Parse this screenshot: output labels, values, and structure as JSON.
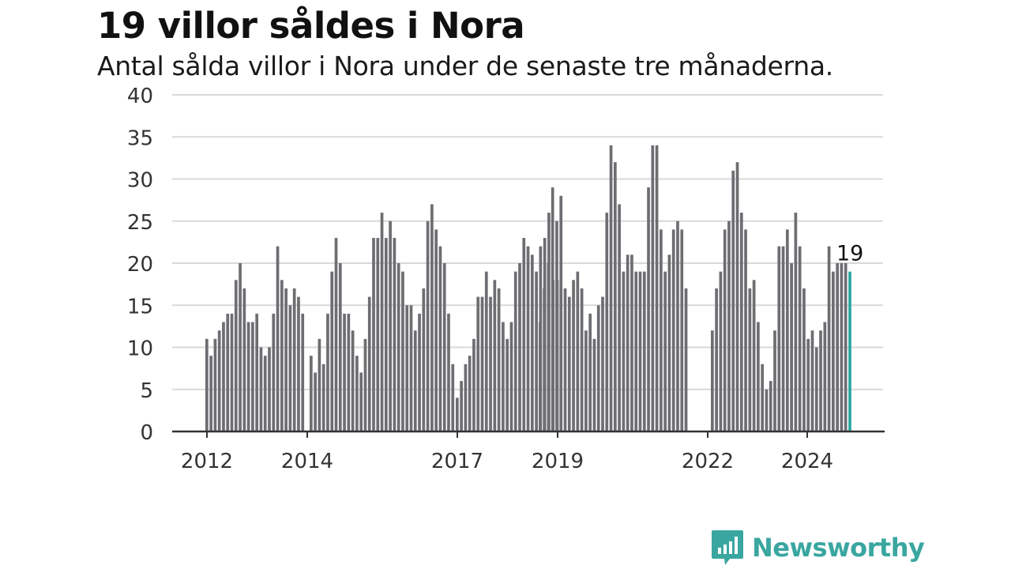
{
  "header": {
    "title": "19 villor såldes i Nora",
    "subtitle": "Antal sålda villor i Nora under de senaste tre månaderna."
  },
  "brand": {
    "name": "Newsworthy",
    "icon": "newsworthy-logo-icon",
    "color": "#3aa6a0"
  },
  "colors": {
    "bar": "#6d6d72",
    "highlight": "#2aa6a0",
    "grid": "#d9d9d9",
    "axis": "#333333"
  },
  "chart_data": {
    "type": "bar",
    "title": "19 villor såldes i Nora",
    "subtitle": "Antal sålda villor i Nora under de senaste tre månaderna.",
    "xlabel": "",
    "ylabel": "",
    "ylim": [
      0,
      40
    ],
    "yticks": [
      0,
      5,
      10,
      15,
      20,
      25,
      30,
      35,
      40
    ],
    "xtick_labels": [
      "2012",
      "2014",
      "2017",
      "2019",
      "2022",
      "2024"
    ],
    "grid": true,
    "segments": [
      [
        11,
        9,
        11,
        12,
        13,
        14,
        14,
        18,
        20,
        17,
        13,
        13,
        14,
        10,
        9,
        10,
        14,
        22,
        18,
        17,
        15,
        17,
        16,
        14
      ],
      [
        9,
        7,
        11,
        8,
        14,
        19,
        23,
        20,
        14,
        14,
        12,
        9,
        7,
        11,
        16,
        23,
        23,
        26,
        23,
        25,
        23,
        20,
        19,
        15,
        15,
        12,
        14,
        17,
        25,
        27,
        24,
        22,
        20,
        14,
        8
      ],
      [
        4,
        6,
        8,
        9,
        11,
        16,
        16,
        19,
        16,
        18,
        17,
        13,
        11,
        13,
        19,
        20,
        23,
        22,
        21,
        19,
        22,
        23,
        26,
        18,
        18
      ],
      [
        13,
        17,
        20,
        29,
        25,
        28,
        17,
        16,
        18,
        19,
        17,
        12,
        14,
        11,
        15,
        16,
        26,
        34,
        32,
        27,
        19,
        21,
        21,
        19,
        19,
        19,
        29,
        34,
        34,
        24,
        19,
        21,
        24,
        25,
        24,
        17
      ],
      [
        12,
        17,
        19,
        24,
        25,
        31,
        32,
        26,
        24,
        17,
        18,
        13,
        8,
        5,
        6,
        12,
        22,
        22,
        24,
        20,
        26,
        22,
        17,
        11,
        12,
        10,
        12,
        13,
        22,
        19,
        20,
        20,
        20,
        19
      ]
    ],
    "highlight": {
      "label": "19",
      "value": 19,
      "position": "last"
    }
  }
}
